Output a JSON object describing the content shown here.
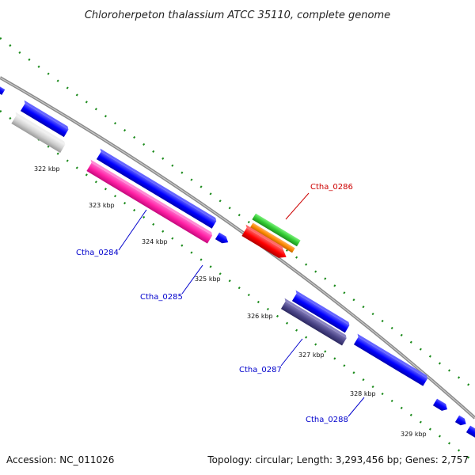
{
  "title": "Chloroherpeton thalassium ATCC 35110, complete genome",
  "footer": {
    "accession": "Accession: NC_011026",
    "summary": "Topology: circular; Length: 3,293,456 bp; Genes: 2,757"
  },
  "colors": {
    "backbone": "#8a8a8a",
    "ruler_dots": "#1a8a1a",
    "cds_forward": "#0000ff",
    "label_blue": "#0000cc",
    "label_red": "#cc0000"
  },
  "ticks": [
    {
      "label": "322 kbp"
    },
    {
      "label": "323 kbp"
    },
    {
      "label": "324 kbp"
    },
    {
      "label": "325 kbp"
    },
    {
      "label": "326 kbp"
    },
    {
      "label": "327 kbp"
    },
    {
      "label": "328 kbp"
    },
    {
      "label": "329 kbp"
    }
  ],
  "gene_labels": [
    {
      "name": "Ctha_0284",
      "color": "#0000cc"
    },
    {
      "name": "Ctha_0285",
      "color": "#0000cc"
    },
    {
      "name": "Ctha_0286",
      "color": "#cc0000"
    },
    {
      "name": "Ctha_0287",
      "color": "#0000cc"
    },
    {
      "name": "Ctha_0288",
      "color": "#0000cc"
    }
  ]
}
